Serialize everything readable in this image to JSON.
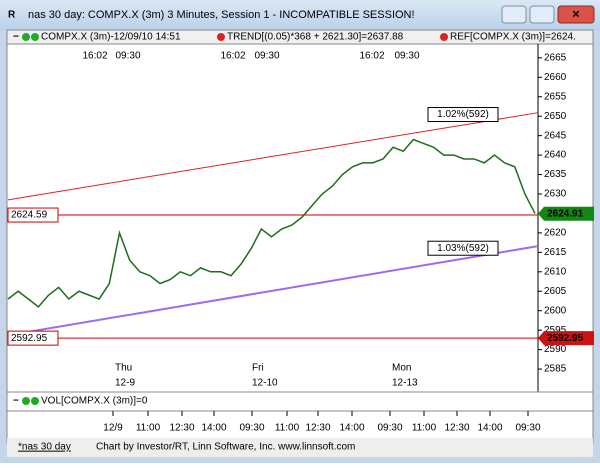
{
  "window": {
    "title": "nas 30 day: COMPX.X (3m) 3 Minutes, Session 1 - INCOMPATIBLE SESSION!",
    "legend": [
      "COMPX.X (3m)-12/09/10 14:51",
      "TREND[(0.05)*368 + 2621.30]=2637.88",
      "REF[COMPX.X (3m)]=2624."
    ],
    "volume_label": "VOL[COMPX.X (3m)]=0",
    "status": [
      "*nas 30 day",
      "Chart by Investor/RT, Linn Software, Inc. www.linnsoft.com"
    ]
  },
  "chart_data": {
    "type": "line",
    "series": [
      {
        "name": "COMPX.X (3m)",
        "color": "#1f6b1f",
        "values": [
          2603,
          2605,
          2603,
          2601,
          2604,
          2606,
          2603,
          2605,
          2604,
          2603,
          2607,
          2620,
          2613,
          2610,
          2609,
          2607,
          2608,
          2610,
          2609,
          2611,
          2610,
          2610,
          2609,
          2612,
          2616,
          2621,
          2619,
          2621,
          2622,
          2624,
          2627,
          2630,
          2632,
          2635,
          2637,
          2638,
          2638,
          2639,
          2642,
          2641,
          2644,
          2643,
          2642,
          2640,
          2640,
          2639,
          2639,
          2638,
          2640,
          2638,
          2637,
          2630,
          2625
        ]
      }
    ],
    "last_price": 2624.91,
    "trend_lines": [
      {
        "label": "1.02%(592)",
        "start": 2628.5,
        "end": 2650.9,
        "color": "#e02020"
      },
      {
        "label": "1.03%(592)",
        "start": 2593.7,
        "end": 2616.6,
        "color": "#9b6cf0"
      }
    ],
    "ref_lines": [
      2624.59,
      2592.95
    ],
    "ylim": [
      2579.1,
      2668.3
    ],
    "yticks": [
      2585,
      2590,
      2595,
      2600,
      2605,
      2610,
      2615,
      2620,
      2625,
      2630,
      2635,
      2640,
      2645,
      2650,
      2655,
      2660,
      2665
    ],
    "top_labels": [
      "16:02",
      "09:30",
      "16:02",
      "09:30",
      "16:02",
      "09:30"
    ],
    "day_labels": [
      [
        "Thu",
        "12-9"
      ],
      [
        "Fri",
        "12-10"
      ],
      [
        "Mon",
        "12-13"
      ]
    ],
    "time_labels": [
      "12/9",
      "11:00",
      "12:30",
      "14:00",
      "09:30",
      "11:00",
      "12:30",
      "14:00",
      "09:30",
      "11:00",
      "12:30",
      "14:00",
      "09:30"
    ]
  }
}
